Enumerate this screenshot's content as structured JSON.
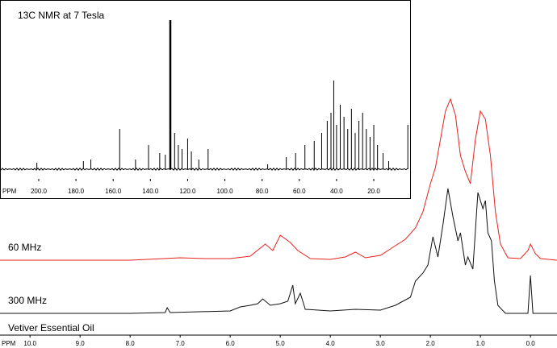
{
  "chart_data": [
    {
      "type": "line",
      "title": "Vetiver Essential Oil",
      "xlabel": "PPM",
      "xlim": [
        10.6,
        -0.53
      ],
      "xticks": [
        {
          "value": 10,
          "label": "10.0"
        },
        {
          "value": 9,
          "label": "9.0"
        },
        {
          "value": 8,
          "label": "8.0"
        },
        {
          "value": 7,
          "label": "7.0"
        },
        {
          "value": 6,
          "label": "6.0"
        },
        {
          "value": 5,
          "label": "5.0"
        },
        {
          "value": 4,
          "label": "4.0"
        },
        {
          "value": 3,
          "label": "3.0"
        },
        {
          "value": 2,
          "label": "2.0"
        },
        {
          "value": 1,
          "label": "1.0"
        },
        {
          "value": 0,
          "label": "0.0"
        }
      ],
      "series": [
        {
          "name": "60 MHz",
          "color": "#e8211d",
          "x": [
            10.6,
            8.0,
            7.0,
            6.5,
            6.0,
            5.6,
            5.3,
            5.15,
            5.0,
            4.8,
            4.65,
            4.4,
            4.0,
            3.7,
            3.5,
            3.3,
            3.0,
            2.7,
            2.5,
            2.3,
            2.15,
            2.0,
            1.9,
            1.8,
            1.7,
            1.6,
            1.5,
            1.4,
            1.3,
            1.2,
            1.1,
            1.0,
            0.9,
            0.8,
            0.7,
            0.6,
            0.45,
            0.2,
            0.05,
            0.0,
            -0.1,
            -0.2,
            -0.53
          ],
          "values": [
            0,
            0,
            3,
            2,
            2,
            5,
            20,
            12,
            31,
            22,
            12,
            2,
            1,
            4,
            10,
            3,
            6,
            18,
            26,
            40,
            60,
            95,
            115,
            150,
            185,
            200,
            180,
            130,
            110,
            95,
            150,
            185,
            175,
            130,
            60,
            20,
            3,
            2,
            12,
            20,
            8,
            2,
            0
          ]
        },
        {
          "name": "300 MHz",
          "color": "#111111",
          "x": [
            10.6,
            8.0,
            7.3,
            7.26,
            7.2,
            6.0,
            5.8,
            5.6,
            5.45,
            5.35,
            5.2,
            5.0,
            4.85,
            4.75,
            4.7,
            4.6,
            4.5,
            4.0,
            3.5,
            3.0,
            2.7,
            2.4,
            2.3,
            2.15,
            2.05,
            1.95,
            1.85,
            1.75,
            1.65,
            1.55,
            1.45,
            1.4,
            1.3,
            1.25,
            1.15,
            1.05,
            0.95,
            0.9,
            0.85,
            0.78,
            0.72,
            0.65,
            0.5,
            0.05,
            0.0,
            -0.05,
            -0.53
          ],
          "values": [
            0,
            0,
            1,
            7,
            1,
            3,
            8,
            10,
            12,
            18,
            10,
            12,
            15,
            35,
            12,
            25,
            5,
            3,
            5,
            4,
            10,
            20,
            40,
            50,
            60,
            95,
            70,
            110,
            155,
            120,
            90,
            100,
            60,
            70,
            55,
            150,
            130,
            140,
            100,
            90,
            40,
            10,
            0,
            0,
            47,
            0,
            0
          ]
        }
      ]
    },
    {
      "type": "stem",
      "title": "13C NMR at 7 Tesla",
      "xlabel": "PPM",
      "xlim": [
        220.8,
        0.5
      ],
      "xticks": [
        {
          "value": 200,
          "label": "200.0"
        },
        {
          "value": 180,
          "label": "180.0"
        },
        {
          "value": 160,
          "label": "160.0"
        },
        {
          "value": 140,
          "label": "140.0"
        },
        {
          "value": 120,
          "label": "120.0"
        },
        {
          "value": 100,
          "label": "100.0"
        },
        {
          "value": 80,
          "label": "80.0"
        },
        {
          "value": 60,
          "label": "60.0"
        },
        {
          "value": 40,
          "label": "40.0"
        },
        {
          "value": 20,
          "label": "20.0"
        }
      ],
      "color": "#000000",
      "x": [
        201,
        176,
        172,
        156.5,
        148,
        141,
        135,
        132,
        129.3,
        127,
        125,
        123,
        120,
        118,
        114,
        109,
        77,
        67,
        62,
        57,
        52,
        48,
        45,
        43,
        41.5,
        40,
        38,
        36,
        34,
        32,
        30,
        28,
        26,
        24,
        22,
        20,
        18,
        15,
        12,
        1.7
      ],
      "values": [
        8,
        10,
        12,
        50,
        12,
        30,
        20,
        18,
        185,
        45,
        30,
        25,
        38,
        22,
        12,
        25,
        6,
        15,
        20,
        30,
        35,
        45,
        60,
        70,
        110,
        55,
        80,
        65,
        50,
        75,
        45,
        60,
        70,
        50,
        40,
        55,
        30,
        20,
        10,
        55
      ]
    }
  ]
}
